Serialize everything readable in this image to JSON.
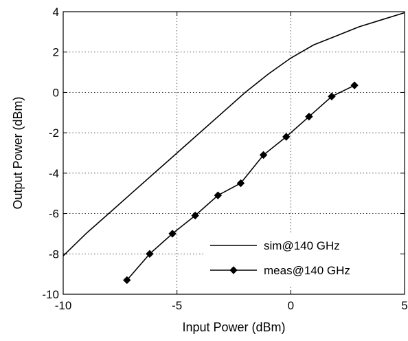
{
  "chart_data": {
    "type": "line",
    "xlabel": "Input Power (dBm)",
    "ylabel": "Output Power (dBm)",
    "xlim": [
      -10,
      5
    ],
    "ylim": [
      -10,
      4
    ],
    "xticks": [
      -10,
      -5,
      0,
      5
    ],
    "yticks": [
      -10,
      -8,
      -6,
      -4,
      -2,
      0,
      2,
      4
    ],
    "grid": true,
    "legend_position": "bottom-right",
    "series": [
      {
        "name": "sim@140 GHz",
        "marker": "none",
        "color": "#000000",
        "x": [
          -10,
          -9,
          -8,
          -7,
          -6,
          -5,
          -4,
          -3,
          -2,
          -1,
          0,
          1,
          2,
          3,
          4,
          5
        ],
        "y": [
          -8.1,
          -7.0,
          -6.0,
          -5.0,
          -4.0,
          -3.0,
          -2.0,
          -1.0,
          0.0,
          0.9,
          1.7,
          2.35,
          2.8,
          3.25,
          3.6,
          3.95
        ]
      },
      {
        "name": "meas@140 GHz",
        "marker": "diamond",
        "color": "#000000",
        "x": [
          -7.2,
          -6.2,
          -5.2,
          -4.2,
          -3.2,
          -2.2,
          -1.2,
          -0.2,
          0.8,
          1.8,
          2.8
        ],
        "y": [
          -9.3,
          -8.0,
          -7.0,
          -6.1,
          -5.1,
          -4.5,
          -3.1,
          -2.2,
          -1.2,
          -0.2,
          0.35
        ]
      }
    ]
  }
}
